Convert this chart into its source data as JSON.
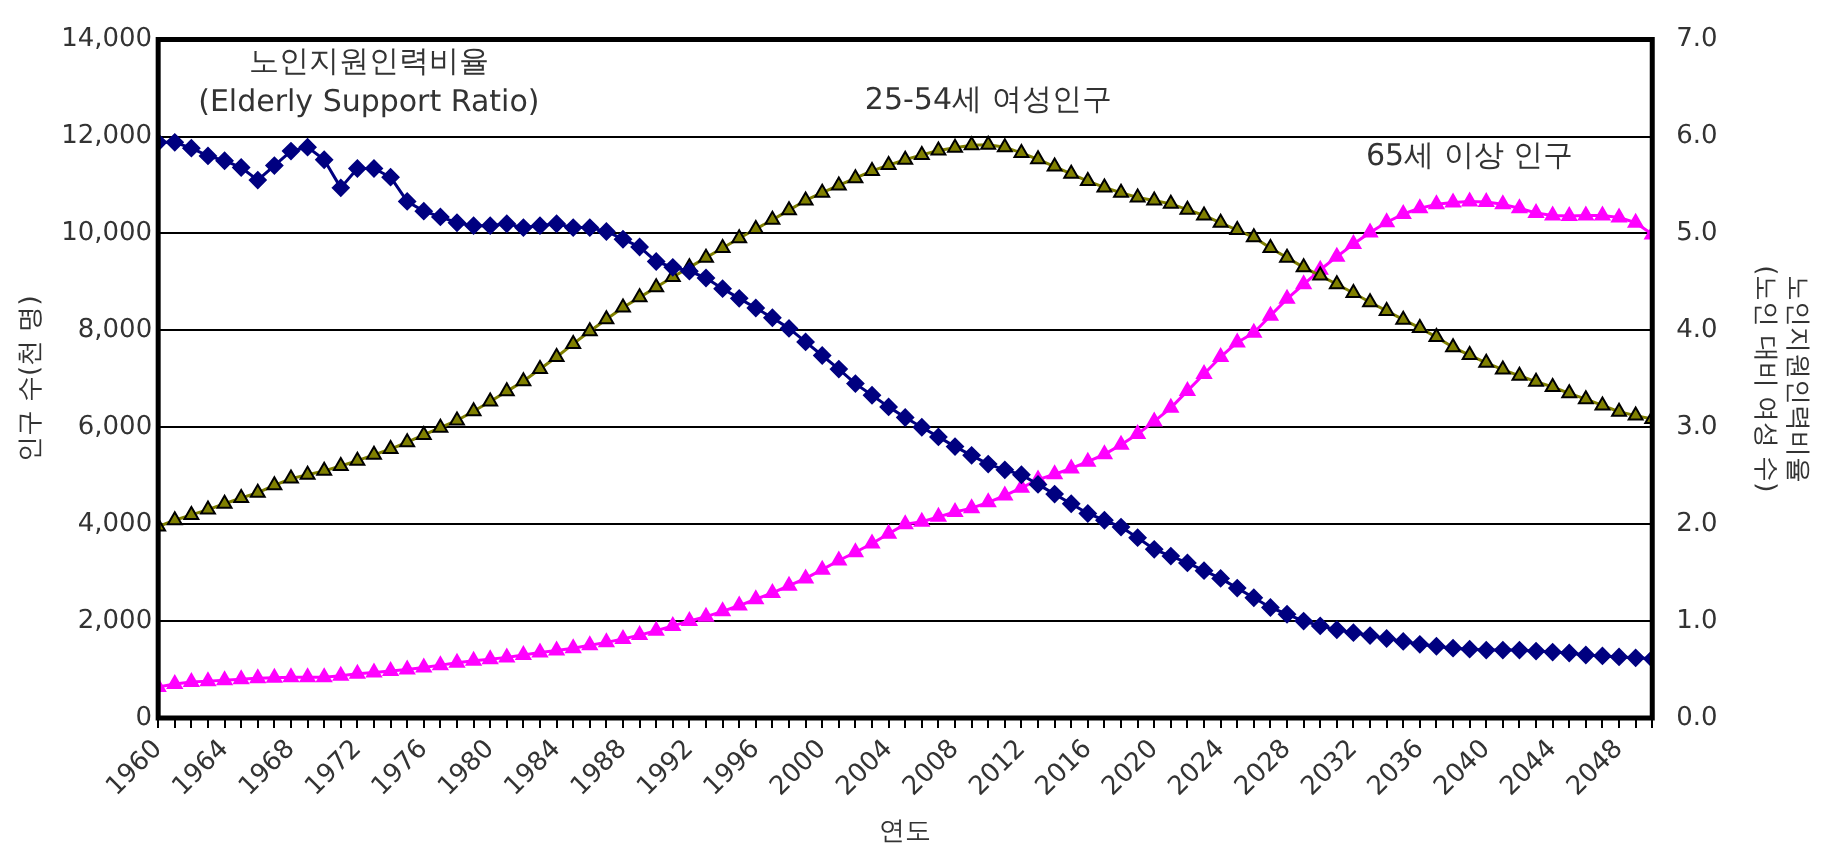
{
  "chart_data": {
    "type": "line",
    "xlabel": "연도",
    "ylabel": "인구 수(천 명)",
    "y2label": "노인지원인력비율\n(노인 대비 여성 수)",
    "x": [
      1960,
      1961,
      1962,
      1963,
      1964,
      1965,
      1966,
      1967,
      1968,
      1969,
      1970,
      1971,
      1972,
      1973,
      1974,
      1975,
      1976,
      1977,
      1978,
      1979,
      1980,
      1981,
      1982,
      1983,
      1984,
      1985,
      1986,
      1987,
      1988,
      1989,
      1990,
      1991,
      1992,
      1993,
      1994,
      1995,
      1996,
      1997,
      1998,
      1999,
      2000,
      2001,
      2002,
      2003,
      2004,
      2005,
      2006,
      2007,
      2008,
      2009,
      2010,
      2011,
      2012,
      2013,
      2014,
      2015,
      2016,
      2017,
      2018,
      2019,
      2020,
      2021,
      2022,
      2023,
      2024,
      2025,
      2026,
      2027,
      2028,
      2029,
      2030,
      2031,
      2032,
      2033,
      2034,
      2035,
      2036,
      2037,
      2038,
      2039,
      2040,
      2041,
      2042,
      2043,
      2044,
      2045,
      2046,
      2047,
      2048,
      2049,
      2050
    ],
    "xlim": [
      1960,
      2050
    ],
    "xticks": [
      1960,
      {
        "value": 1961,
        "label": null
      },
      {
        "value": 1962,
        "label": null
      },
      {
        "value": 1963,
        "label": null
      },
      1964,
      {
        "value": 1965,
        "label": null
      },
      {
        "value": 1966,
        "label": null
      },
      {
        "value": 1967,
        "label": null
      },
      1968,
      {
        "value": 1969,
        "label": null
      },
      {
        "value": 1970,
        "label": null
      },
      {
        "value": 1971,
        "label": null
      },
      1972,
      {
        "value": 1973,
        "label": null
      },
      {
        "value": 1974,
        "label": null
      },
      {
        "value": 1975,
        "label": null
      },
      1976,
      {
        "value": 1977,
        "label": null
      },
      {
        "value": 1978,
        "label": null
      },
      {
        "value": 1979,
        "label": null
      },
      1980,
      {
        "value": 1981,
        "label": null
      },
      {
        "value": 1982,
        "label": null
      },
      {
        "value": 1983,
        "label": null
      },
      1984,
      {
        "value": 1985,
        "label": null
      },
      {
        "value": 1986,
        "label": null
      },
      {
        "value": 1987,
        "label": null
      },
      1988,
      {
        "value": 1989,
        "label": null
      },
      {
        "value": 1990,
        "label": null
      },
      {
        "value": 1991,
        "label": null
      },
      1992,
      {
        "value": 1993,
        "label": null
      },
      {
        "value": 1994,
        "label": null
      },
      {
        "value": 1995,
        "label": null
      },
      1996,
      {
        "value": 1997,
        "label": null
      },
      {
        "value": 1998,
        "label": null
      },
      {
        "value": 1999,
        "label": null
      },
      2000,
      {
        "value": 2001,
        "label": null
      },
      {
        "value": 2002,
        "label": null
      },
      {
        "value": 2003,
        "label": null
      },
      2004,
      {
        "value": 2005,
        "label": null
      },
      {
        "value": 2006,
        "label": null
      },
      {
        "value": 2007,
        "label": null
      },
      2008,
      {
        "value": 2009,
        "label": null
      },
      {
        "value": 2010,
        "label": null
      },
      {
        "value": 2011,
        "label": null
      },
      2012,
      {
        "value": 2013,
        "label": null
      },
      {
        "value": 2014,
        "label": null
      },
      {
        "value": 2015,
        "label": null
      },
      2016,
      {
        "value": 2017,
        "label": null
      },
      {
        "value": 2018,
        "label": null
      },
      {
        "value": 2019,
        "label": null
      },
      2020,
      {
        "value": 2021,
        "label": null
      },
      {
        "value": 2022,
        "label": null
      },
      {
        "value": 2023,
        "label": null
      },
      2024,
      {
        "value": 2025,
        "label": null
      },
      {
        "value": 2026,
        "label": null
      },
      {
        "value": 2027,
        "label": null
      },
      2028,
      {
        "value": 2029,
        "label": null
      },
      {
        "value": 2030,
        "label": null
      },
      {
        "value": 2031,
        "label": null
      },
      2032,
      {
        "value": 2033,
        "label": null
      },
      {
        "value": 2034,
        "label": null
      },
      {
        "value": 2035,
        "label": null
      },
      2036,
      {
        "value": 2037,
        "label": null
      },
      {
        "value": 2038,
        "label": null
      },
      {
        "value": 2039,
        "label": null
      },
      2040,
      {
        "value": 2041,
        "label": null
      },
      {
        "value": 2042,
        "label": null
      },
      {
        "value": 2043,
        "label": null
      },
      2044,
      {
        "value": 2045,
        "label": null
      },
      {
        "value": 2046,
        "label": null
      },
      {
        "value": 2047,
        "label": null
      },
      2048,
      {
        "value": 2049,
        "label": null
      },
      {
        "value": 2050,
        "label": null
      }
    ],
    "ylim": [
      0,
      14000
    ],
    "yticks": [
      0,
      {
        "value": 2000,
        "label": "2,000"
      },
      {
        "value": 4000,
        "label": "4,000"
      },
      {
        "value": 6000,
        "label": "6,000"
      },
      {
        "value": 8000,
        "label": "8,000"
      },
      {
        "value": 10000,
        "label": "10,000"
      },
      {
        "value": 12000,
        "label": "12,000"
      },
      {
        "value": 14000,
        "label": "14,000"
      }
    ],
    "y2lim": [
      0,
      7
    ],
    "y2ticks": [
      {
        "value": 0,
        "label": "0.0"
      },
      {
        "value": 1,
        "label": "1.0"
      },
      {
        "value": 2,
        "label": "2.0"
      },
      {
        "value": 3,
        "label": "3.0"
      },
      {
        "value": 4,
        "label": "4.0"
      },
      {
        "value": 5,
        "label": "5.0"
      },
      {
        "value": 6,
        "label": "6.0"
      },
      {
        "value": 7,
        "label": "7.0"
      }
    ],
    "grid": "y",
    "legend": false,
    "series": [
      {
        "name": "노인지원인력비율\n(Elderly Support Ratio)",
        "color": "#000080",
        "axis": "y2",
        "marker": "diamond",
        "values": [
          5.94,
          5.94,
          5.88,
          5.8,
          5.75,
          5.68,
          5.55,
          5.7,
          5.85,
          5.89,
          5.76,
          5.47,
          5.67,
          5.67,
          5.58,
          5.33,
          5.23,
          5.17,
          5.11,
          5.08,
          5.08,
          5.1,
          5.06,
          5.08,
          5.1,
          5.06,
          5.06,
          5.02,
          4.94,
          4.86,
          4.71,
          4.65,
          4.61,
          4.54,
          4.43,
          4.33,
          4.23,
          4.13,
          4.02,
          3.88,
          3.74,
          3.6,
          3.45,
          3.33,
          3.21,
          3.1,
          3.0,
          2.9,
          2.8,
          2.71,
          2.62,
          2.56,
          2.51,
          2.41,
          2.31,
          2.21,
          2.11,
          2.04,
          1.97,
          1.86,
          1.74,
          1.67,
          1.6,
          1.52,
          1.44,
          1.34,
          1.24,
          1.14,
          1.07,
          1.0,
          0.95,
          0.91,
          0.88,
          0.85,
          0.82,
          0.79,
          0.76,
          0.74,
          0.72,
          0.71,
          0.7,
          0.7,
          0.7,
          0.69,
          0.68,
          0.67,
          0.65,
          0.64,
          0.63,
          0.62,
          0.61
        ]
      },
      {
        "name": "25-54세 여성인구",
        "color": "#808000",
        "marker": "triangle",
        "values": [
          3950,
          4080,
          4190,
          4300,
          4420,
          4540,
          4650,
          4800,
          4940,
          5020,
          5100,
          5200,
          5310,
          5430,
          5550,
          5690,
          5840,
          5990,
          6140,
          6330,
          6530,
          6740,
          6950,
          7200,
          7450,
          7720,
          7980,
          8230,
          8470,
          8680,
          8890,
          9100,
          9300,
          9500,
          9700,
          9900,
          10090,
          10280,
          10480,
          10680,
          10840,
          10990,
          11140,
          11290,
          11410,
          11520,
          11620,
          11710,
          11770,
          11820,
          11830,
          11780,
          11660,
          11530,
          11380,
          11230,
          11080,
          10950,
          10840,
          10740,
          10680,
          10610,
          10490,
          10370,
          10220,
          10070,
          9920,
          9700,
          9500,
          9300,
          9130,
          8950,
          8770,
          8580,
          8400,
          8220,
          8050,
          7860,
          7650,
          7490,
          7330,
          7190,
          7060,
          6940,
          6830,
          6700,
          6580,
          6450,
          6320,
          6240,
          6170
        ]
      },
      {
        "name": "65세 이상 인구",
        "color": "#ff00ff",
        "marker": "triangle",
        "values": [
          640,
          700,
          740,
          760,
          780,
          800,
          820,
          830,
          840,
          840,
          840,
          870,
          910,
          940,
          970,
          1000,
          1040,
          1090,
          1140,
          1180,
          1210,
          1250,
          1300,
          1350,
          1390,
          1440,
          1500,
          1560,
          1630,
          1710,
          1800,
          1900,
          2000,
          2090,
          2200,
          2320,
          2450,
          2580,
          2730,
          2880,
          3060,
          3250,
          3420,
          3600,
          3800,
          4000,
          4050,
          4150,
          4250,
          4330,
          4450,
          4590,
          4750,
          4920,
          5030,
          5150,
          5290,
          5440,
          5640,
          5860,
          6120,
          6400,
          6750,
          7100,
          7450,
          7750,
          7950,
          8300,
          8650,
          8950,
          9250,
          9520,
          9780,
          10020,
          10230,
          10400,
          10520,
          10600,
          10640,
          10660,
          10650,
          10600,
          10520,
          10420,
          10370,
          10360,
          10370,
          10370,
          10330,
          10220,
          9980
        ]
      }
    ]
  }
}
